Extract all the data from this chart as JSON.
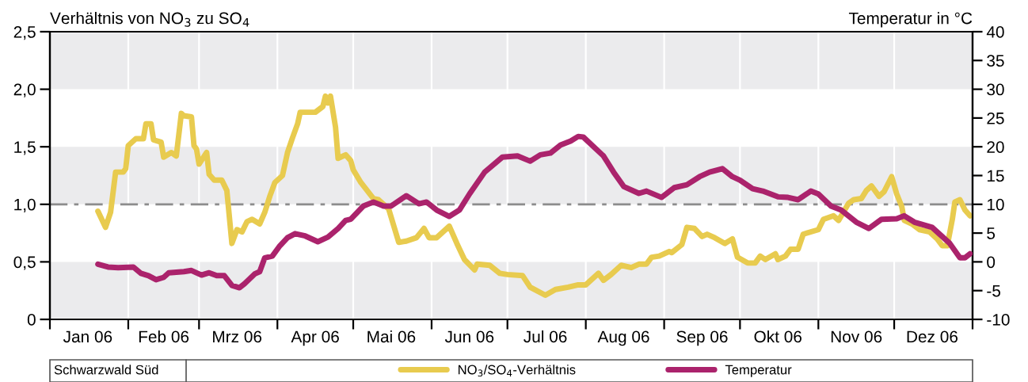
{
  "chart_data": {
    "type": "line",
    "ylabel": "Verhältnis von NO$_{3}$ zu SO$_{4}$",
    "y2label": "Temperatur in °C",
    "annotations": [
      "Schwarzwald Süd"
    ],
    "xlim": [
      "2006-01-01",
      "2007-01-01"
    ],
    "xticks": [
      {
        "value": "2006-01-01",
        "label": null
      },
      {
        "value": "2006-01-16",
        "label": "Jan 06"
      },
      {
        "value": "2006-02-01",
        "label": null
      },
      {
        "value": "2006-02-15",
        "label": "Feb 06"
      },
      {
        "value": "2006-03-01",
        "label": null
      },
      {
        "value": "2006-03-16",
        "label": "Mrz 06"
      },
      {
        "value": "2006-04-01",
        "label": null
      },
      {
        "value": "2006-04-16",
        "label": "Apr 06"
      },
      {
        "value": "2006-05-01",
        "label": null
      },
      {
        "value": "2006-05-16",
        "label": "Mai 06"
      },
      {
        "value": "2006-06-01",
        "label": null
      },
      {
        "value": "2006-06-16",
        "label": "Jun 06"
      },
      {
        "value": "2006-07-01",
        "label": null
      },
      {
        "value": "2006-07-16",
        "label": "Jul 06"
      },
      {
        "value": "2006-08-01",
        "label": null
      },
      {
        "value": "2006-08-16",
        "label": "Aug 06"
      },
      {
        "value": "2006-09-01",
        "label": null
      },
      {
        "value": "2006-09-16",
        "label": "Sep 06"
      },
      {
        "value": "2006-10-01",
        "label": null
      },
      {
        "value": "2006-10-16",
        "label": "Okt 06"
      },
      {
        "value": "2006-11-01",
        "label": null
      },
      {
        "value": "2006-11-16",
        "label": "Nov 06"
      },
      {
        "value": "2006-12-01",
        "label": null
      },
      {
        "value": "2006-12-16",
        "label": "Dez 06"
      },
      {
        "value": "2007-01-01",
        "label": null
      }
    ],
    "ylim": [
      0,
      2.5
    ],
    "yticks": [
      0,
      {
        "value": 0.5,
        "label": "0,5"
      },
      {
        "value": 1.0,
        "label": "1,0"
      },
      {
        "value": 1.5,
        "label": "1,5"
      },
      {
        "value": 2.0,
        "label": "2,0"
      },
      {
        "value": 2.5,
        "label": "2,5"
      }
    ],
    "y2lim": [
      -10,
      40
    ],
    "y2ticks": [
      -10,
      -5,
      0,
      5,
      10,
      15,
      20,
      25,
      30,
      35,
      40
    ],
    "grid": "x",
    "legend": "bottom",
    "line_style": "solid",
    "marker": "none",
    "ref_lines": [
      {
        "axis": "y",
        "value": 1.0,
        "color": "#8c8c8c",
        "line_style": "dashdot"
      }
    ],
    "bands": [
      {
        "axis": "y",
        "from": 0,
        "to": 0.5,
        "color": "#ebebed"
      },
      {
        "axis": "y",
        "from": 1.0,
        "to": 1.5,
        "color": "#ebebed"
      },
      {
        "axis": "y",
        "from": 2.0,
        "to": 2.5,
        "color": "#ebebed"
      }
    ],
    "series": [
      {
        "name": "NO$_{3}$/SO$_{4}$-Verhältnis",
        "color": "#e8cb4f",
        "x": [
          "2006-01-20",
          "2006-01-23",
          "2006-01-25",
          "2006-01-27",
          "2006-01-30",
          "2006-01-31",
          "2006-02-01",
          "2006-02-04",
          "2006-02-07",
          "2006-02-08",
          "2006-02-10",
          "2006-02-11",
          "2006-02-14",
          "2006-02-15",
          "2006-02-18",
          "2006-02-20",
          "2006-02-22",
          "2006-02-23",
          "2006-02-26",
          "2006-02-27",
          "2006-02-28",
          "2006-03-01",
          "2006-03-04",
          "2006-03-05",
          "2006-03-07",
          "2006-03-10",
          "2006-03-12",
          "2006-03-14",
          "2006-03-16",
          "2006-03-18",
          "2006-03-20",
          "2006-03-22",
          "2006-03-25",
          "2006-03-27",
          "2006-03-29",
          "2006-03-31",
          "2006-04-03",
          "2006-04-05",
          "2006-04-07",
          "2006-04-09",
          "2006-04-10",
          "2006-04-16",
          "2006-04-19",
          "2006-04-20",
          "2006-04-21",
          "2006-04-22",
          "2006-04-24",
          "2006-04-25",
          "2006-04-28",
          "2006-04-30",
          "2006-05-01",
          "2006-05-04",
          "2006-05-09",
          "2006-05-11",
          "2006-05-15",
          "2006-05-19",
          "2006-05-22",
          "2006-05-26",
          "2006-05-29",
          "2006-05-31",
          "2006-06-03",
          "2006-06-08",
          "2006-06-11",
          "2006-06-14",
          "2006-06-18",
          "2006-06-19",
          "2006-06-24",
          "2006-06-28",
          "2006-07-01",
          "2006-07-07",
          "2006-07-10",
          "2006-07-16",
          "2006-07-20",
          "2006-07-25",
          "2006-07-29",
          "2006-08-01",
          "2006-08-06",
          "2006-08-08",
          "2006-08-11",
          "2006-08-15",
          "2006-08-19",
          "2006-08-22",
          "2006-08-25",
          "2006-08-27",
          "2006-08-30",
          "2006-09-03",
          "2006-09-04",
          "2006-09-08",
          "2006-09-10",
          "2006-09-13",
          "2006-09-16",
          "2006-09-18",
          "2006-09-21",
          "2006-09-25",
          "2006-09-28",
          "2006-09-30",
          "2006-10-04",
          "2006-10-07",
          "2006-10-09",
          "2006-10-11",
          "2006-10-15",
          "2006-10-16",
          "2006-10-19",
          "2006-10-21",
          "2006-10-24",
          "2006-10-26",
          "2006-11-01",
          "2006-11-03",
          "2006-11-07",
          "2006-11-09",
          "2006-11-13",
          "2006-11-15",
          "2006-11-18",
          "2006-11-20",
          "2006-11-22",
          "2006-11-25",
          "2006-11-27",
          "2006-11-30",
          "2006-12-02",
          "2006-12-04",
          "2006-12-05",
          "2006-12-08",
          "2006-12-11",
          "2006-12-15",
          "2006-12-18",
          "2006-12-20",
          "2006-12-22",
          "2006-12-24",
          "2006-12-25",
          "2006-12-27",
          "2006-12-29",
          "2006-12-31"
        ],
        "values": [
          0.94,
          0.8,
          0.93,
          1.28,
          1.28,
          1.31,
          1.51,
          1.57,
          1.57,
          1.7,
          1.7,
          1.56,
          1.54,
          1.41,
          1.45,
          1.42,
          1.79,
          1.77,
          1.76,
          1.51,
          1.48,
          1.35,
          1.45,
          1.26,
          1.21,
          1.21,
          1.12,
          0.66,
          0.78,
          0.76,
          0.85,
          0.87,
          0.83,
          0.93,
          1.07,
          1.19,
          1.25,
          1.45,
          1.58,
          1.7,
          1.8,
          1.8,
          1.85,
          1.94,
          1.88,
          1.94,
          1.67,
          1.4,
          1.43,
          1.38,
          1.3,
          1.19,
          1.05,
          1.04,
          0.96,
          0.67,
          0.68,
          0.71,
          0.79,
          0.71,
          0.71,
          0.81,
          0.66,
          0.52,
          0.43,
          0.48,
          0.47,
          0.4,
          0.39,
          0.38,
          0.28,
          0.21,
          0.26,
          0.28,
          0.3,
          0.3,
          0.4,
          0.34,
          0.39,
          0.47,
          0.45,
          0.48,
          0.48,
          0.54,
          0.55,
          0.59,
          0.58,
          0.65,
          0.8,
          0.79,
          0.72,
          0.74,
          0.71,
          0.66,
          0.7,
          0.54,
          0.49,
          0.49,
          0.55,
          0.52,
          0.57,
          0.52,
          0.55,
          0.61,
          0.61,
          0.74,
          0.78,
          0.87,
          0.9,
          0.86,
          1.01,
          1.04,
          1.05,
          1.12,
          1.16,
          1.07,
          1.11,
          1.24,
          1.09,
          0.98,
          0.86,
          0.83,
          0.78,
          0.76,
          0.7,
          0.64,
          0.64,
          0.87,
          1.02,
          1.04,
          0.95,
          0.9
        ]
      },
      {
        "name": "Temperatur",
        "color": "#ab236c",
        "axis": "y2",
        "x": [
          "2006-01-20",
          "2006-01-24",
          "2006-01-28",
          "2006-02-03",
          "2006-02-06",
          "2006-02-09",
          "2006-02-12",
          "2006-02-15",
          "2006-02-17",
          "2006-02-23",
          "2006-02-26",
          "2006-03-02",
          "2006-03-05",
          "2006-03-08",
          "2006-03-11",
          "2006-03-14",
          "2006-03-17",
          "2006-03-19",
          "2006-03-23",
          "2006-03-25",
          "2006-03-27",
          "2006-03-30",
          "2006-04-02",
          "2006-04-05",
          "2006-04-08",
          "2006-04-12",
          "2006-04-17",
          "2006-04-21",
          "2006-04-25",
          "2006-04-28",
          "2006-04-30",
          "2006-05-05",
          "2006-05-09",
          "2006-05-13",
          "2006-05-16",
          "2006-05-22",
          "2006-05-27",
          "2006-05-30",
          "2006-06-03",
          "2006-06-08",
          "2006-06-12",
          "2006-06-16",
          "2006-06-22",
          "2006-06-29",
          "2006-07-05",
          "2006-07-10",
          "2006-07-14",
          "2006-07-18",
          "2006-07-22",
          "2006-07-26",
          "2006-07-29",
          "2006-07-31",
          "2006-08-08",
          "2006-08-12",
          "2006-08-16",
          "2006-08-22",
          "2006-08-25",
          "2006-08-31",
          "2006-09-05",
          "2006-09-10",
          "2006-09-15",
          "2006-09-19",
          "2006-09-24",
          "2006-09-28",
          "2006-10-01",
          "2006-10-06",
          "2006-10-10",
          "2006-10-16",
          "2006-10-20",
          "2006-10-24",
          "2006-10-29",
          "2006-11-01",
          "2006-11-06",
          "2006-11-10",
          "2006-11-16",
          "2006-11-21",
          "2006-11-26",
          "2006-12-02",
          "2006-12-05",
          "2006-12-09",
          "2006-12-16",
          "2006-12-23",
          "2006-12-27",
          "2006-12-29",
          "2006-12-31"
        ],
        "values": [
          -0.4,
          -0.9,
          -1.0,
          -0.9,
          -2.0,
          -2.4,
          -3.1,
          -2.7,
          -1.9,
          -1.7,
          -1.5,
          -2.3,
          -1.9,
          -2.4,
          -2.4,
          -4.1,
          -4.5,
          -3.8,
          -2.1,
          -1.7,
          0.7,
          1.0,
          2.8,
          4.2,
          4.9,
          4.5,
          3.5,
          4.3,
          5.8,
          7.2,
          7.4,
          9.7,
          10.4,
          9.7,
          9.7,
          11.5,
          10.1,
          10.4,
          9.0,
          7.9,
          9.0,
          11.8,
          15.6,
          18.2,
          18.4,
          17.5,
          18.6,
          18.9,
          20.3,
          21.0,
          21.8,
          21.7,
          18.4,
          15.6,
          13.1,
          11.9,
          12.3,
          11.2,
          12.9,
          13.4,
          14.8,
          15.6,
          16.2,
          14.8,
          14.2,
          12.7,
          12.3,
          11.3,
          11.2,
          10.8,
          12.3,
          11.8,
          9.7,
          9.0,
          6.9,
          5.8,
          7.4,
          7.5,
          8.0,
          6.9,
          6.0,
          3.2,
          0.7,
          0.7,
          1.4
        ]
      }
    ]
  }
}
